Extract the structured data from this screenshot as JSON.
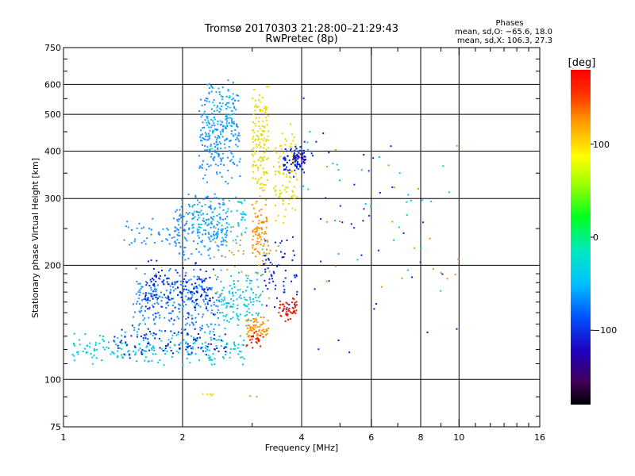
{
  "chart_data": {
    "type": "scatter",
    "title": "Tromsø 20170303 21:28:00–21:29:43",
    "subtitle": "RwPretec (8p)",
    "xlabel": "Frequency [MHz]",
    "ylabel": "Stationary phase Virtual Height [km]",
    "x_scale": "log",
    "y_scale": "log",
    "xlim": [
      1,
      16
    ],
    "ylim": [
      75,
      750
    ],
    "x_ticks": [
      1,
      2,
      4,
      6,
      8,
      10,
      16
    ],
    "x_tick_labels": [
      "1",
      "2",
      "4",
      "6",
      "8",
      "10",
      "16"
    ],
    "y_ticks": [
      75,
      100,
      200,
      300,
      400,
      500,
      600,
      750
    ],
    "y_tick_labels": [
      "75",
      "100",
      "200",
      "300",
      "400",
      "500",
      "600",
      "750"
    ],
    "grid": true,
    "legend": {
      "title": "Phases",
      "line1": "mean, sd,O: −65.6, 18.0",
      "line2": "mean, sd,X: 106.3, 27.3",
      "placement": "top-right"
    },
    "colorbar": {
      "label": "[deg]",
      "range": [
        -180,
        180
      ],
      "ticks": [
        100,
        0,
        -100
      ],
      "tick_labels": [
        "100",
        "0",
        "−100"
      ]
    },
    "point_colors": {
      "cyan": "#00c8e8",
      "deepsky": "#1e90ff",
      "blue": "#0020e0",
      "yellow": "#e8d800",
      "orange": "#ff8c00",
      "red": "#e02000",
      "olive": "#b0b040",
      "navy": "#2010a0"
    },
    "clusters": [
      {
        "name": "low-trace-cyan",
        "x": [
          1.05,
          2.9
        ],
        "y": [
          108,
          135
        ],
        "n": 220,
        "color": "cyan"
      },
      {
        "name": "low-trace-blue",
        "x": [
          1.3,
          2.6
        ],
        "y": [
          112,
          140
        ],
        "n": 90,
        "color": "blue"
      },
      {
        "name": "e-region-mid",
        "x": [
          1.5,
          2.5
        ],
        "y": [
          130,
          200
        ],
        "n": 260,
        "color": "deepsky"
      },
      {
        "name": "e-region-blue",
        "x": [
          1.6,
          2.4
        ],
        "y": [
          140,
          210
        ],
        "n": 140,
        "color": "blue"
      },
      {
        "name": "f-lower-cyan",
        "x": [
          1.9,
          2.6
        ],
        "y": [
          200,
          320
        ],
        "n": 200,
        "color": "deepsky"
      },
      {
        "name": "f-lower-light",
        "x": [
          2.1,
          2.9
        ],
        "y": [
          220,
          320
        ],
        "n": 90,
        "color": "cyan"
      },
      {
        "name": "f-upper-column",
        "x": [
          2.2,
          2.8
        ],
        "y": [
          320,
          620
        ],
        "n": 230,
        "color": "deepsky"
      },
      {
        "name": "f-upper-light",
        "x": [
          2.3,
          2.7
        ],
        "y": [
          380,
          640
        ],
        "n": 60,
        "color": "cyan"
      },
      {
        "name": "left-bump",
        "x": [
          1.4,
          1.95
        ],
        "y": [
          220,
          270
        ],
        "n": 40,
        "color": "deepsky"
      },
      {
        "name": "mid-cyan",
        "x": [
          2.5,
          3.2
        ],
        "y": [
          130,
          200
        ],
        "n": 120,
        "color": "cyan"
      },
      {
        "name": "x-yellow-upper",
        "x": [
          3.0,
          3.3
        ],
        "y": [
          280,
          620
        ],
        "n": 140,
        "color": "yellow"
      },
      {
        "name": "x-orange-upper",
        "x": [
          3.0,
          3.3
        ],
        "y": [
          200,
          300
        ],
        "n": 80,
        "color": "orange"
      },
      {
        "name": "x-yellow-right",
        "x": [
          3.4,
          3.9
        ],
        "y": [
          250,
          480
        ],
        "n": 90,
        "color": "yellow"
      },
      {
        "name": "x-orange-low",
        "x": [
          2.9,
          3.3
        ],
        "y": [
          125,
          150
        ],
        "n": 60,
        "color": "orange"
      },
      {
        "name": "x-red-low",
        "x": [
          3.5,
          3.9
        ],
        "y": [
          140,
          165
        ],
        "n": 50,
        "color": "red"
      },
      {
        "name": "x-red-lowest",
        "x": [
          2.9,
          3.2
        ],
        "y": [
          120,
          135
        ],
        "n": 25,
        "color": "red"
      },
      {
        "name": "blue-cluster-400",
        "x": [
          3.6,
          4.1
        ],
        "y": [
          340,
          420
        ],
        "n": 70,
        "color": "blue"
      },
      {
        "name": "navy-cluster-400",
        "x": [
          3.8,
          4.1
        ],
        "y": [
          370,
          400
        ],
        "n": 30,
        "color": "navy"
      },
      {
        "name": "blue-right-mid",
        "x": [
          3.2,
          3.9
        ],
        "y": [
          150,
          250
        ],
        "n": 60,
        "color": "blue"
      },
      {
        "name": "olive-mix",
        "x": [
          2.4,
          3.5
        ],
        "y": [
          160,
          260
        ],
        "n": 40,
        "color": "olive"
      },
      {
        "name": "scatter-right-blue",
        "x": [
          4.0,
          10.0
        ],
        "y": [
          110,
          650
        ],
        "n": 40,
        "color": "blue"
      },
      {
        "name": "scatter-right-cyan",
        "x": [
          4.0,
          10.0
        ],
        "y": [
          150,
          620
        ],
        "n": 30,
        "color": "cyan"
      },
      {
        "name": "scatter-right-orange",
        "x": [
          4.5,
          10.0
        ],
        "y": [
          140,
          520
        ],
        "n": 20,
        "color": "orange"
      },
      {
        "name": "bottom-yellow",
        "x": [
          2.25,
          2.4
        ],
        "y": [
          90,
          92
        ],
        "n": 6,
        "color": "yellow"
      },
      {
        "name": "bottom-olive",
        "x": [
          2.9,
          3.1
        ],
        "y": [
          90,
          92
        ],
        "n": 2,
        "color": "olive"
      }
    ]
  }
}
